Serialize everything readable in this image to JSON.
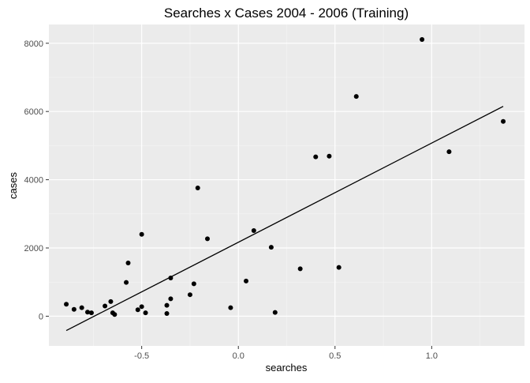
{
  "chart_data": {
    "type": "scatter",
    "title": "Searches x Cases 2004 - 2006 (Training)",
    "xlabel": "searches",
    "ylabel": "cases",
    "xlim": [
      -0.98,
      1.48
    ],
    "ylim": [
      -870,
      8550
    ],
    "xticks": [
      -0.5,
      0.0,
      0.5,
      1.0
    ],
    "xtick_labels": [
      "-0.5",
      "0.0",
      "0.5",
      "1.0"
    ],
    "yticks": [
      0,
      2000,
      4000,
      6000,
      8000
    ],
    "ytick_labels": [
      "0",
      "2000",
      "4000",
      "6000",
      "8000"
    ],
    "grid": true,
    "legend": "none",
    "points": [
      {
        "x": -0.89,
        "y": 350
      },
      {
        "x": -0.85,
        "y": 200
      },
      {
        "x": -0.81,
        "y": 250
      },
      {
        "x": -0.78,
        "y": 120
      },
      {
        "x": -0.76,
        "y": 100
      },
      {
        "x": -0.69,
        "y": 300
      },
      {
        "x": -0.66,
        "y": 430
      },
      {
        "x": -0.65,
        "y": 100
      },
      {
        "x": -0.64,
        "y": 50
      },
      {
        "x": -0.58,
        "y": 990
      },
      {
        "x": -0.57,
        "y": 1560
      },
      {
        "x": -0.52,
        "y": 190
      },
      {
        "x": -0.5,
        "y": 280
      },
      {
        "x": -0.5,
        "y": 2400
      },
      {
        "x": -0.48,
        "y": 100
      },
      {
        "x": -0.37,
        "y": 320
      },
      {
        "x": -0.37,
        "y": 80
      },
      {
        "x": -0.35,
        "y": 510
      },
      {
        "x": -0.35,
        "y": 1120
      },
      {
        "x": -0.25,
        "y": 630
      },
      {
        "x": -0.23,
        "y": 950
      },
      {
        "x": -0.21,
        "y": 3760
      },
      {
        "x": -0.16,
        "y": 2270
      },
      {
        "x": -0.04,
        "y": 250
      },
      {
        "x": 0.04,
        "y": 1030
      },
      {
        "x": 0.08,
        "y": 2510
      },
      {
        "x": 0.17,
        "y": 2020
      },
      {
        "x": 0.19,
        "y": 110
      },
      {
        "x": 0.32,
        "y": 1390
      },
      {
        "x": 0.4,
        "y": 4670
      },
      {
        "x": 0.47,
        "y": 4690
      },
      {
        "x": 0.52,
        "y": 1430
      },
      {
        "x": 0.61,
        "y": 6440
      },
      {
        "x": 0.95,
        "y": 8110
      },
      {
        "x": 1.09,
        "y": 4820
      },
      {
        "x": 1.37,
        "y": 5710
      }
    ],
    "fit_line": {
      "x": [
        -0.89,
        1.37
      ],
      "y": [
        -420,
        6150
      ]
    }
  }
}
